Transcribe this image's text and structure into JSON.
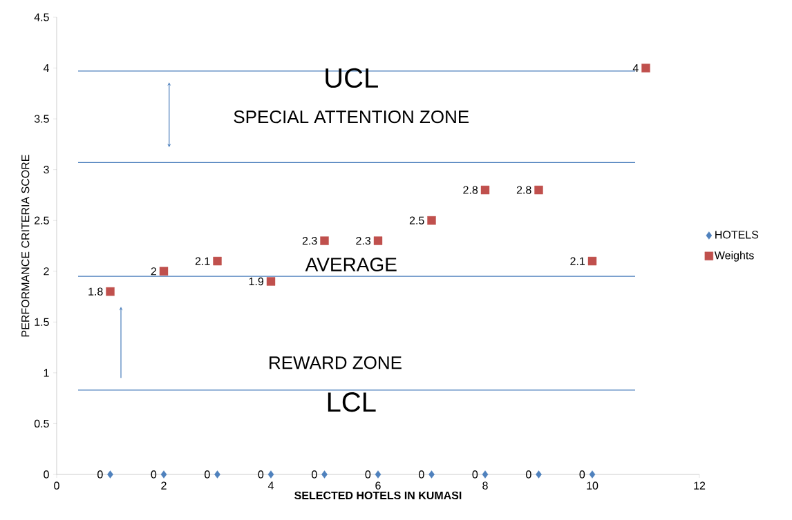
{
  "chart_data": {
    "type": "scatter",
    "xlabel": "SELECTED HOTELS IN KUMASI",
    "ylabel": "PERFORMANCE CRITERIA SCORE",
    "xlim": [
      0,
      12
    ],
    "xticks": [
      0,
      2,
      4,
      6,
      8,
      10,
      12
    ],
    "ylim": [
      0,
      4.5
    ],
    "yticks": [
      0,
      0.5,
      1,
      1.5,
      2,
      2.5,
      3,
      3.5,
      4,
      4.5
    ],
    "legend": "right",
    "series": [
      {
        "name": "HOTELS",
        "color": "#4f81bd",
        "marker": "diamond",
        "x": [
          1,
          2,
          3,
          4,
          5,
          6,
          7,
          8,
          9,
          10
        ],
        "values": [
          0,
          0,
          0,
          0,
          0,
          0,
          0,
          0,
          0,
          0
        ],
        "value_labels": [
          "0",
          "0",
          "0",
          "0",
          "0",
          "0",
          "0",
          "0",
          "0",
          "0"
        ]
      },
      {
        "name": "Weights",
        "color": "#c0504d",
        "marker": "square",
        "x": [
          1,
          2,
          3,
          4,
          5,
          6,
          7,
          8,
          9,
          10,
          11
        ],
        "values": [
          1.8,
          2,
          2.1,
          1.9,
          2.3,
          2.3,
          2.5,
          2.8,
          2.8,
          2.1,
          4
        ],
        "value_labels": [
          "1.8",
          "2",
          "2.1",
          "1.9",
          "2.3",
          "2.3",
          "2.5",
          "2.8",
          "2.8",
          "2.1",
          "4"
        ]
      }
    ],
    "ref_lines": [
      {
        "axis": "y",
        "value": 3.97,
        "label": "UCL",
        "color": "#4a7ebb"
      },
      {
        "axis": "y",
        "value": 3.07,
        "color": "#4a7ebb"
      },
      {
        "axis": "y",
        "value": 1.95,
        "label": "AVERAGE",
        "color": "#4a7ebb"
      },
      {
        "axis": "y",
        "value": 0.83,
        "label": "LCL",
        "color": "#4a7ebb"
      }
    ],
    "annotations": [
      "SPECIAL ATTENTION  ZONE",
      "REWARD ZONE"
    ]
  }
}
